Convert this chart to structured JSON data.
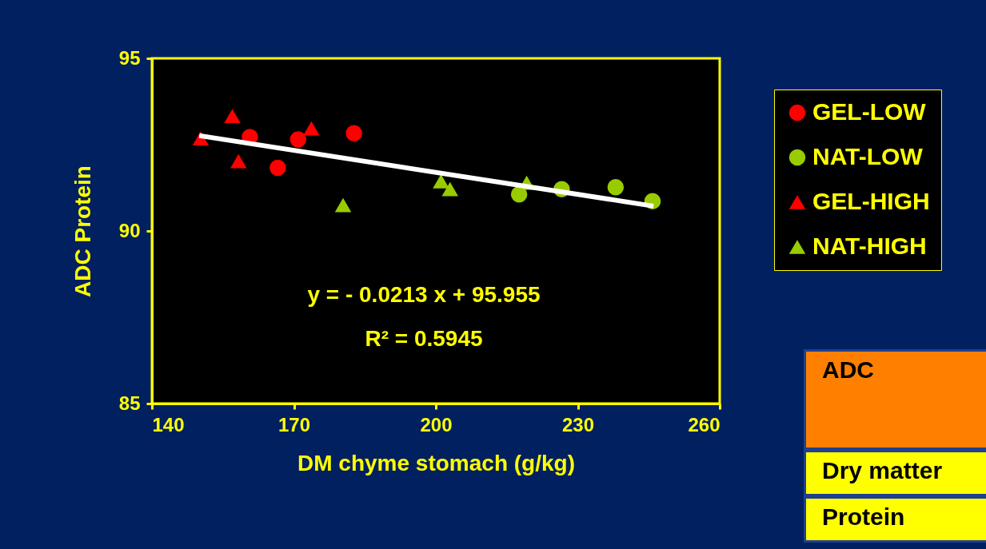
{
  "chart_data": {
    "type": "scatter",
    "xlabel": "DM chyme stomach (g/kg)",
    "ylabel": "ADC Protein",
    "xlim": [
      140,
      260
    ],
    "xticks": [
      140,
      170,
      200,
      230,
      260
    ],
    "ylim": [
      85,
      95
    ],
    "yticks": [
      85,
      90,
      95
    ],
    "grid": false,
    "legend": "right",
    "annotations": [
      "y = - 0.0213 x + 95.955",
      "R² = 0.5945",
      "ADC",
      "Dry matter",
      "Protein"
    ],
    "series": [
      {
        "name": "GEL-LOW",
        "color": "#ff0000",
        "marker": "circle",
        "x": [
          160.7,
          170.9,
          166.6,
          182.7
        ],
        "values": [
          92.72,
          92.65,
          91.83,
          92.83
        ]
      },
      {
        "name": "NAT-LOW",
        "color": "#99cc00",
        "marker": "circle",
        "x": [
          217.6,
          226.6,
          238.0,
          245.8
        ],
        "values": [
          91.06,
          91.21,
          91.27,
          90.86
        ]
      },
      {
        "name": "GEL-HIGH",
        "color": "#ff0000",
        "marker": "triangle",
        "x": [
          150.3,
          157.0,
          158.3,
          173.7
        ],
        "values": [
          92.68,
          93.33,
          92.02,
          92.97
        ]
      },
      {
        "name": "NAT-HIGH",
        "color": "#99cc00",
        "marker": "triangle",
        "x": [
          180.4,
          201.1,
          203.0,
          219.2
        ],
        "values": [
          90.75,
          91.44,
          91.21,
          91.4
        ]
      },
      {
        "type": "line",
        "color": "#ffffff",
        "x": [
          150,
          246
        ],
        "values": [
          92.76,
          90.72
        ]
      }
    ]
  }
}
